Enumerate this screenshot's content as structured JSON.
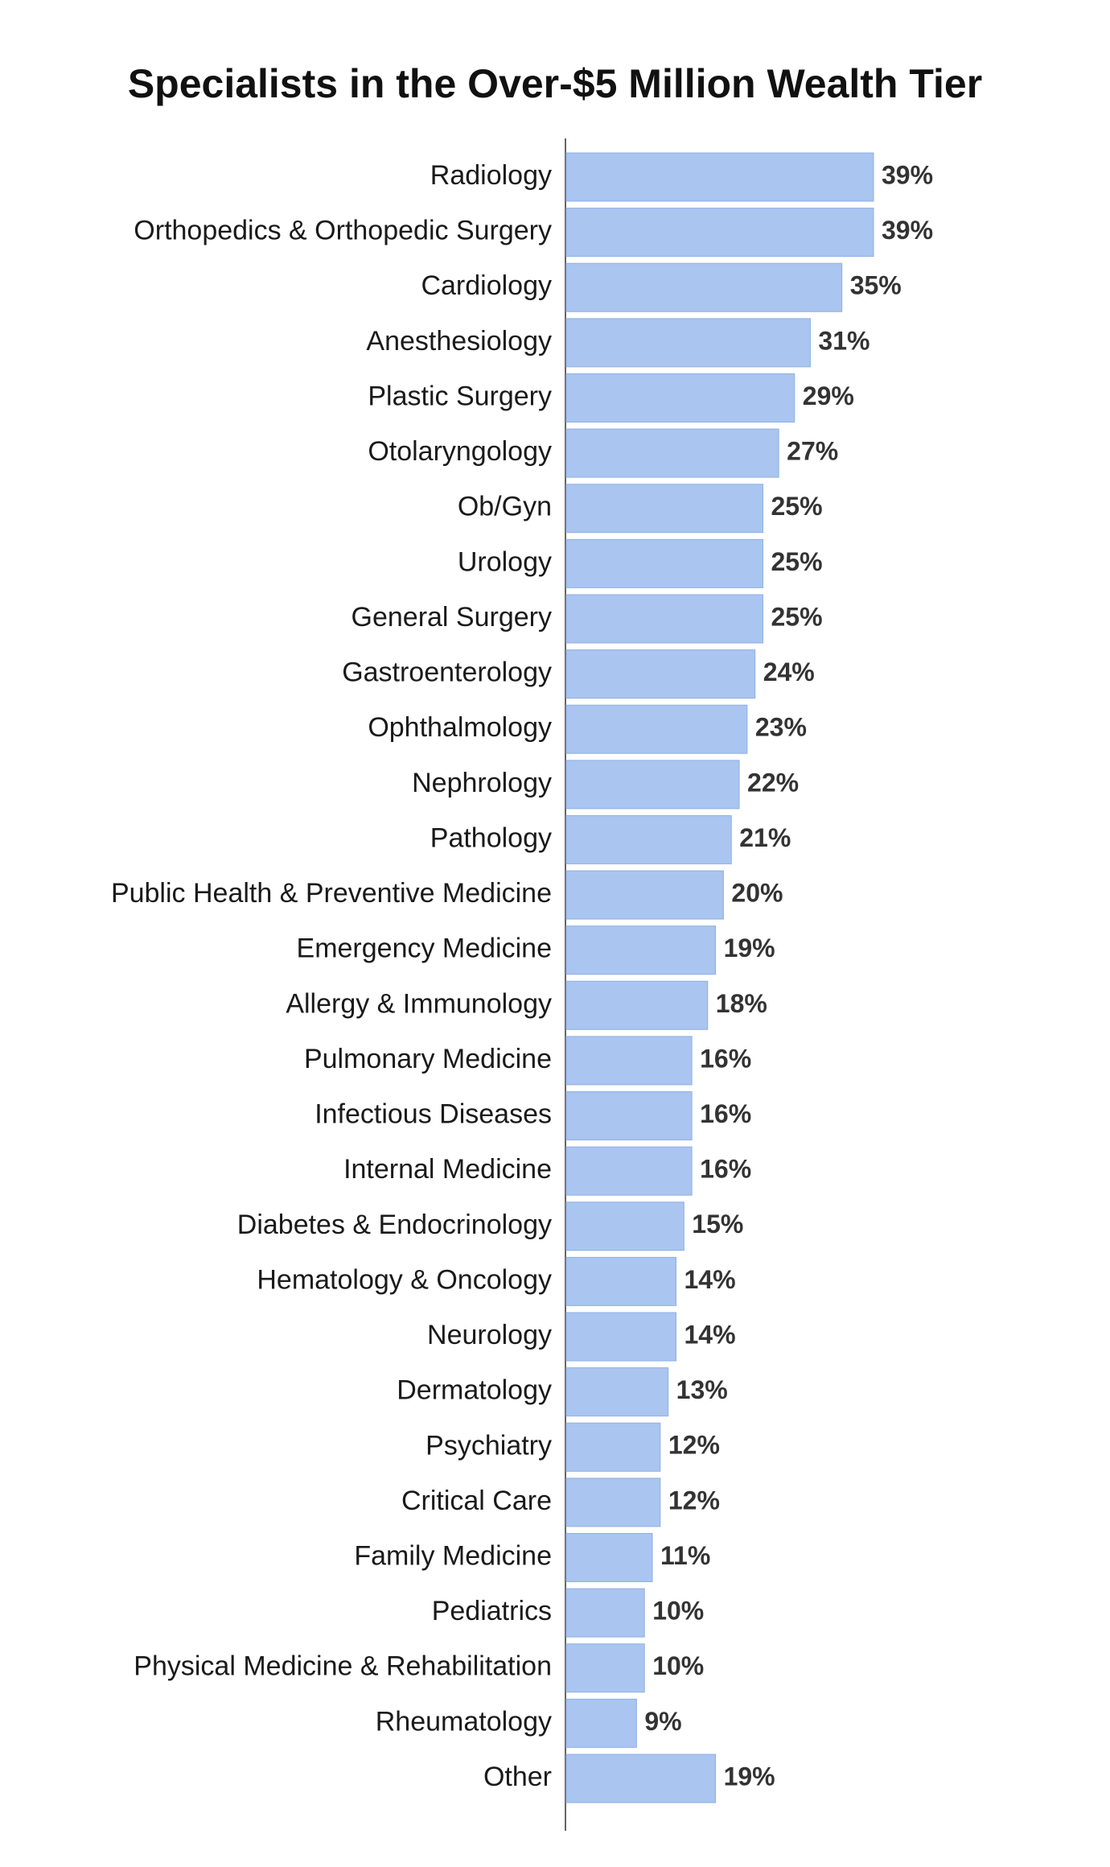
{
  "chart_data": {
    "type": "bar",
    "orientation": "horizontal",
    "title": "Specialists in the Over-$5 Million Wealth Tier",
    "color": "#a9c5f0",
    "categories": [
      "Radiology",
      "Orthopedics & Orthopedic Surgery",
      "Cardiology",
      "Anesthesiology",
      "Plastic Surgery",
      "Otolaryngology",
      "Ob/Gyn",
      "Urology",
      "General Surgery",
      "Gastroenterology",
      "Ophthalmology",
      "Nephrology",
      "Pathology",
      "Public Health & Preventive Medicine",
      "Emergency Medicine",
      "Allergy & Immunology",
      "Pulmonary Medicine",
      "Infectious Diseases",
      "Internal Medicine",
      "Diabetes & Endocrinology",
      "Hematology & Oncology",
      "Neurology",
      "Dermatology",
      "Psychiatry",
      "Critical Care",
      "Family Medicine",
      "Pediatrics",
      "Physical Medicine & Rehabilitation",
      "Rheumatology",
      "Other"
    ],
    "values": [
      39,
      39,
      35,
      31,
      29,
      27,
      25,
      25,
      25,
      24,
      23,
      22,
      21,
      20,
      19,
      18,
      16,
      16,
      16,
      15,
      14,
      14,
      13,
      12,
      12,
      11,
      10,
      10,
      9,
      19
    ],
    "value_labels": [
      "39%",
      "39%",
      "35%",
      "31%",
      "29%",
      "27%",
      "25%",
      "25%",
      "25%",
      "24%",
      "23%",
      "22%",
      "21%",
      "20%",
      "19%",
      "18%",
      "16%",
      "16%",
      "16%",
      "15%",
      "14%",
      "14%",
      "13%",
      "12%",
      "12%",
      "11%",
      "10%",
      "10%",
      "9%",
      "19%"
    ]
  }
}
